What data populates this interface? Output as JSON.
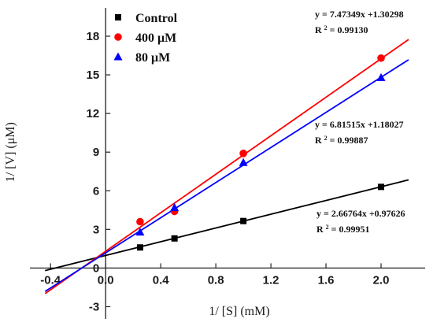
{
  "chart_data": {
    "type": "scatter",
    "xlabel": "1/ [S] (mM)",
    "ylabel": "1/ [V] (μM)",
    "xlim": [
      -0.55,
      2.32
    ],
    "ylim": [
      -3.95,
      20.2
    ],
    "xticks": [
      -0.4,
      0.0,
      0.4,
      0.8,
      1.2,
      1.6,
      2.0
    ],
    "xtick_labels": [
      "-0.4",
      "0.0",
      "0.4",
      "0.8",
      "1.2",
      "1.6",
      "2.0"
    ],
    "yticks": [
      -3,
      0,
      3,
      6,
      9,
      12,
      15,
      18
    ],
    "ytick_labels": [
      "-3",
      "0",
      "3",
      "6",
      "9",
      "12",
      "15",
      "18"
    ],
    "grid": false,
    "legend_position": "top-left",
    "fit_x_range": [
      -0.44,
      2.2
    ],
    "series": [
      {
        "name": "Control",
        "color": "#000000",
        "marker": "square",
        "x": [
          0.25,
          0.5,
          1.0,
          2.0
        ],
        "y": [
          1.6,
          2.3,
          3.65,
          6.3
        ],
        "slope": 2.66764,
        "intercept": 0.97626,
        "equation": "y = 2.66764x +0.97626",
        "r2_label": "R",
        "r2_value": "0.99951"
      },
      {
        "name": "400 μM",
        "color": "#ff0000",
        "marker": "circle",
        "x": [
          0.25,
          0.5,
          1.0,
          2.0
        ],
        "y": [
          3.6,
          4.4,
          8.9,
          16.3
        ],
        "slope": 7.47349,
        "intercept": 1.30298,
        "equation": "y = 7.47349x +1.30298",
        "r2_label": "R",
        "r2_value": "0.99130"
      },
      {
        "name": "80 μM",
        "color": "#0000ff",
        "marker": "triangle",
        "x": [
          0.25,
          0.5,
          1.0,
          2.0
        ],
        "y": [
          2.8,
          4.7,
          8.2,
          14.8
        ],
        "slope": 6.81515,
        "intercept": 1.18027,
        "equation": "y = 6.81515x +1.18027",
        "r2_label": "R",
        "r2_value": "0.99887"
      }
    ]
  }
}
